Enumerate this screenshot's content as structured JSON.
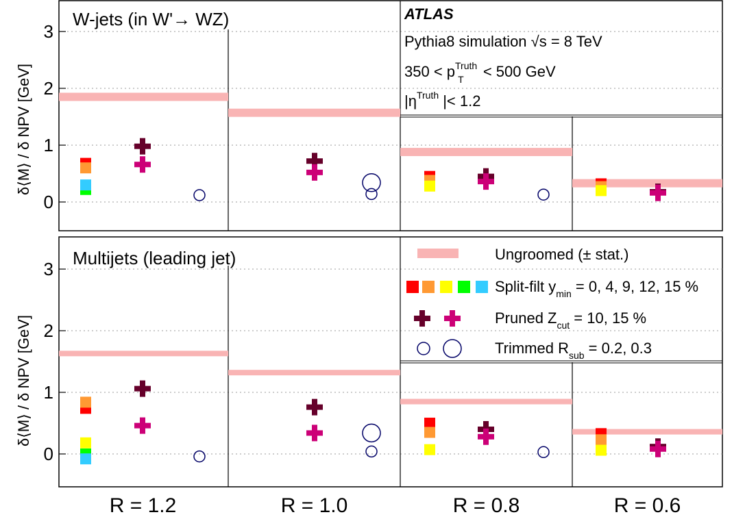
{
  "colors": {
    "ungroomed": "#f9b4b4",
    "split_filt": [
      "#ff0000",
      "#ff9933",
      "#ffff00",
      "#00ff00",
      "#33ccff"
    ],
    "pruned": [
      "#66002a",
      "#cc0077"
    ],
    "trimmed": [
      "#000066",
      "#000066"
    ]
  },
  "y_axis_label_parts": [
    "δ",
    "⟨M⟩",
    " / ",
    "δ",
    " NPV    [GeV]"
  ],
  "atlas_label": "ATLAS",
  "info": {
    "line1": "Pythia8 simulation √s = 8 TeV",
    "line2_a": "350 < p",
    "line2_sup": "Truth",
    "line2_sub": "T",
    "line2_b": " < 500 GeV",
    "line3_a": "|η",
    "line3_sup": "Truth",
    "line3_b": " |< 1.2"
  },
  "legend": [
    {
      "key": "ungroomed",
      "label": "Ungroomed (± stat.)",
      "sub": "",
      "tail": ""
    },
    {
      "key": "split",
      "label": "Split-filt y",
      "sub": "min",
      "tail": " = 0, 4, 9, 12, 15 %"
    },
    {
      "key": "pruned",
      "label": "Pruned Z",
      "sub": "cut",
      "tail": " = 10, 15 %"
    },
    {
      "key": "trimmed",
      "label": "Trimmed R",
      "sub": "sub",
      "tail": " = 0.2, 0.3"
    }
  ],
  "chart_data": [
    {
      "type": "scatter",
      "title": "W-jets (in W'→ WZ)",
      "ylim": [
        -0.5,
        3.5
      ],
      "yticks": [
        0,
        1,
        2,
        3
      ],
      "grid": true,
      "categories": [
        "R = 1.2",
        "R = 1.0",
        "R = 0.8",
        "R = 0.6"
      ],
      "ungroomed": [
        1.85,
        1.57,
        0.88,
        0.33
      ],
      "split_filt": [
        [
          0.68,
          0.6,
          0.27,
          0.22,
          0.3
        ],
        [
          null,
          null,
          null,
          null,
          null
        ],
        [
          0.45,
          0.38,
          0.28,
          null,
          null
        ],
        [
          0.32,
          0.27,
          0.2,
          null,
          null
        ]
      ],
      "pruned": [
        [
          0.98,
          0.66
        ],
        [
          0.72,
          0.52
        ],
        [
          0.45,
          0.36
        ],
        [
          0.18,
          0.16
        ]
      ],
      "trimmed": [
        [
          null,
          0.12
        ],
        [
          0.14,
          0.34
        ],
        [
          null,
          0.13
        ],
        [
          null,
          null
        ]
      ]
    },
    {
      "type": "scatter",
      "title": "Multijets (leading jet)",
      "ylim": [
        -0.5,
        3.5
      ],
      "yticks": [
        0,
        1,
        2,
        3
      ],
      "grid": true,
      "categories": [
        "R = 1.2",
        "R = 1.0",
        "R = 0.8",
        "R = 0.6"
      ],
      "ungroomed": [
        1.63,
        1.32,
        0.85,
        0.36
      ],
      "split_filt": [
        [
          0.74,
          0.84,
          0.18,
          0.0,
          -0.08
        ],
        [
          null,
          null,
          null,
          null,
          null
        ],
        [
          0.5,
          0.35,
          0.07,
          null,
          null
        ],
        [
          0.33,
          0.23,
          0.06,
          null,
          null
        ]
      ],
      "pruned": [
        [
          1.06,
          0.46
        ],
        [
          0.76,
          0.34
        ],
        [
          0.4,
          0.28
        ],
        [
          0.12,
          0.08
        ]
      ],
      "trimmed": [
        [
          null,
          -0.04
        ],
        [
          0.04,
          0.34
        ],
        [
          null,
          0.03
        ],
        [
          null,
          null
        ]
      ]
    }
  ]
}
